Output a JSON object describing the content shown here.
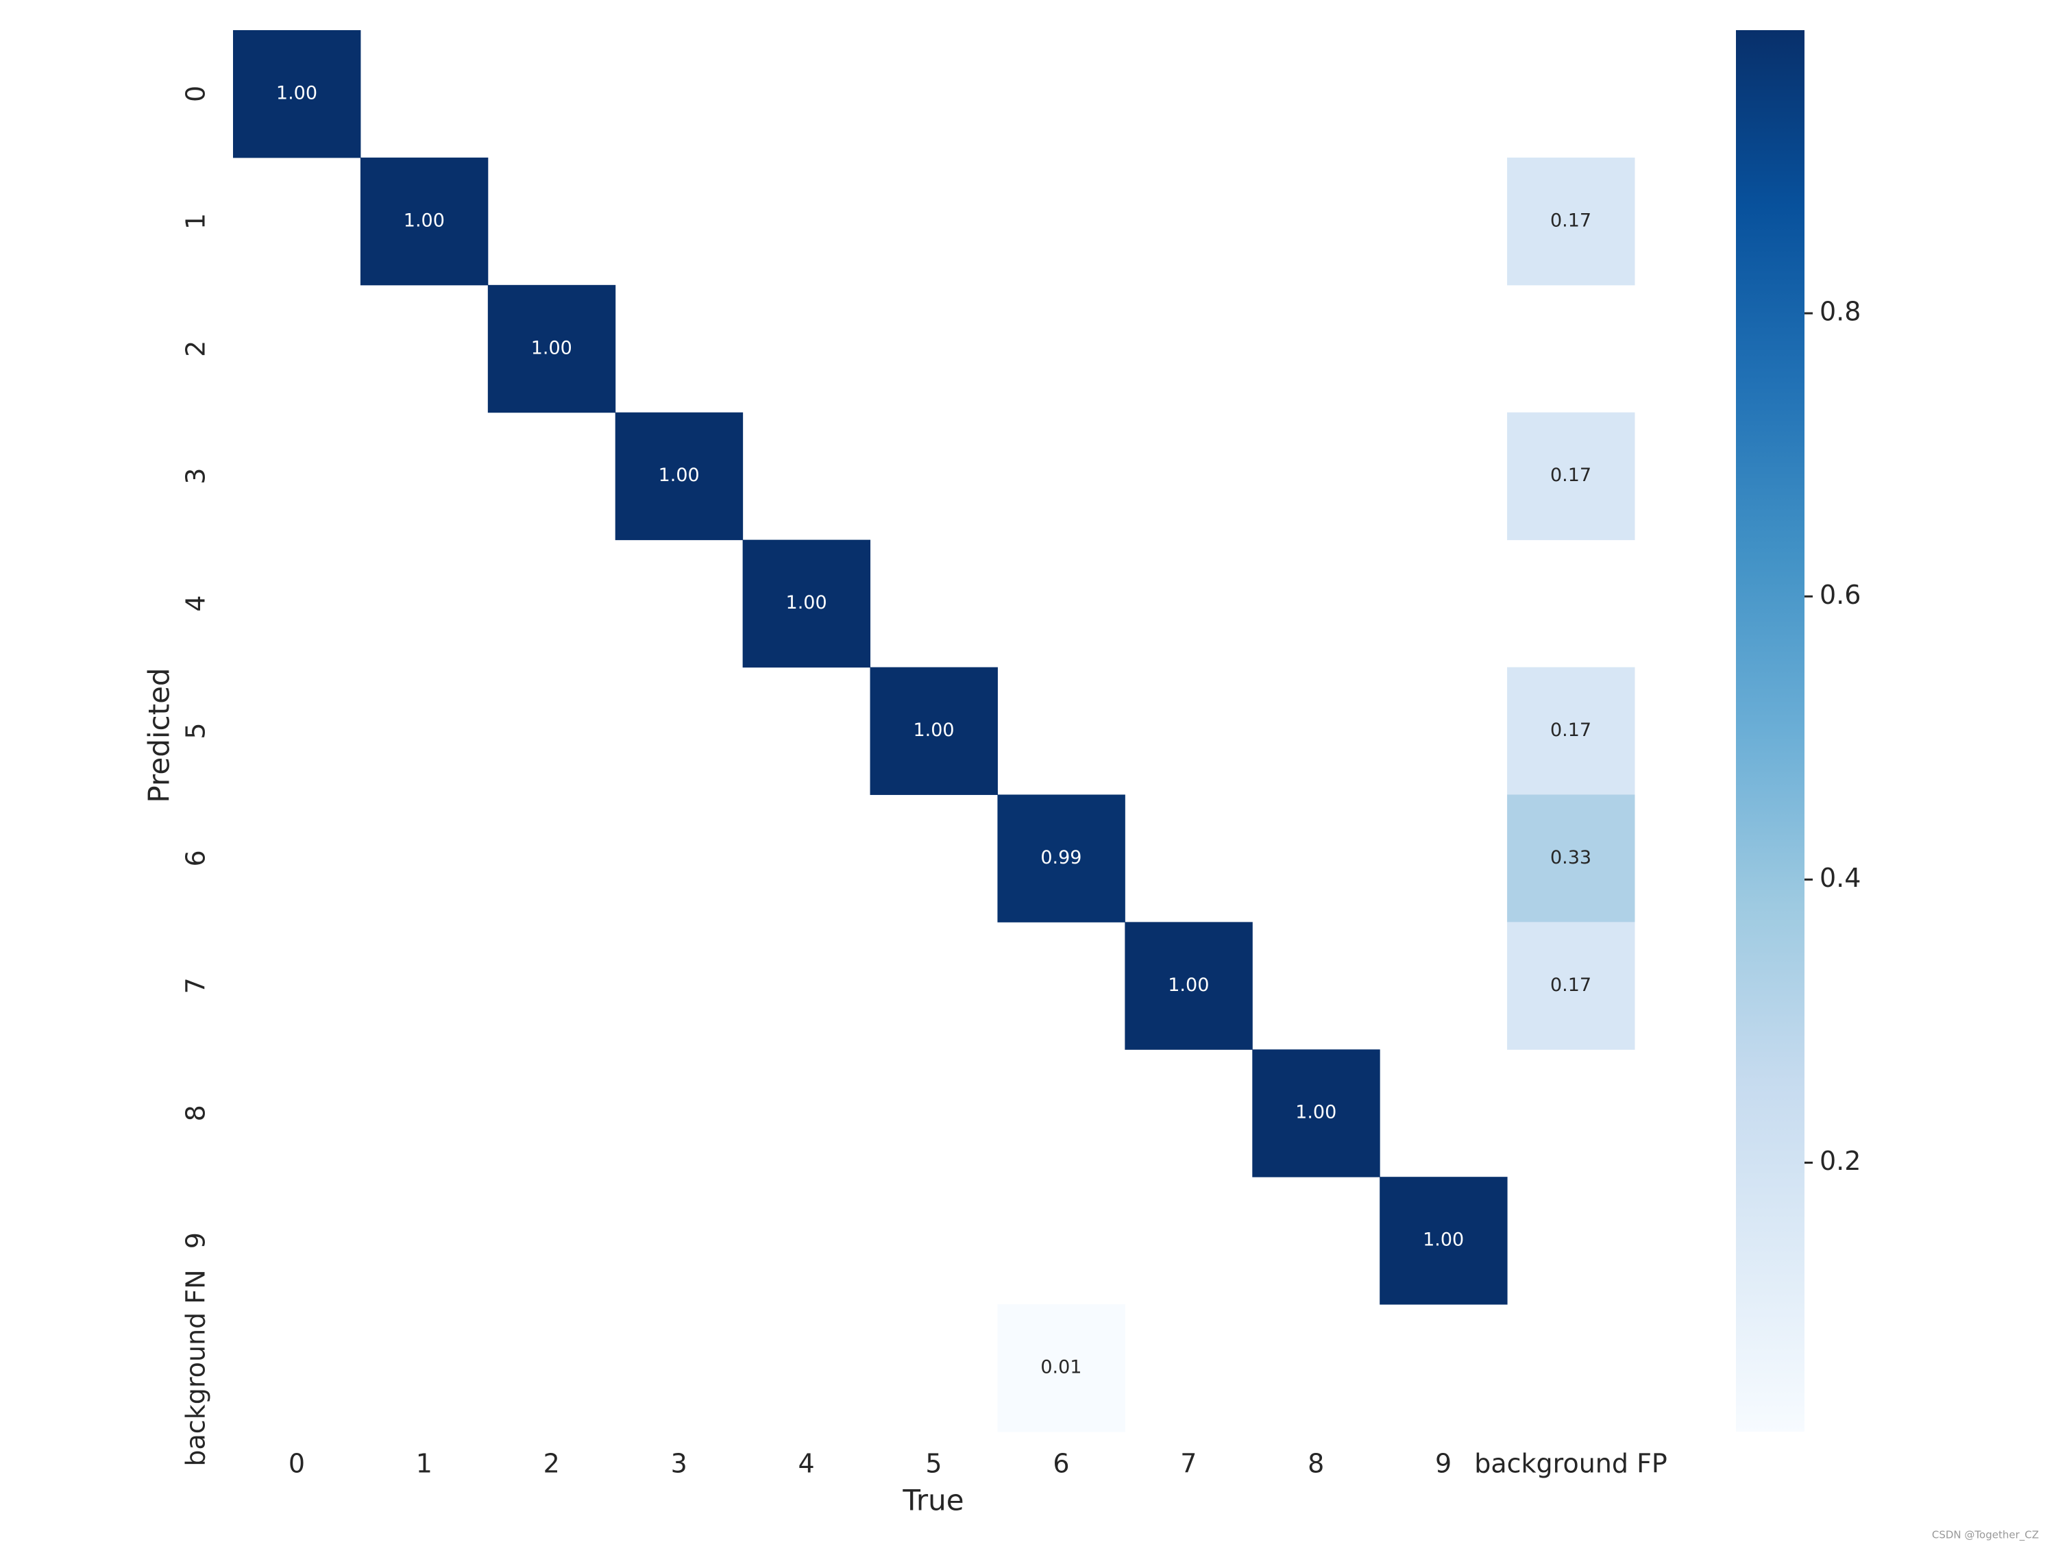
{
  "chart_data": {
    "type": "heatmap",
    "x_label": "True",
    "y_label": "Predicted",
    "x_categories": [
      "0",
      "1",
      "2",
      "3",
      "4",
      "5",
      "6",
      "7",
      "8",
      "9",
      "background FP"
    ],
    "y_categories": [
      "0",
      "1",
      "2",
      "3",
      "4",
      "5",
      "6",
      "7",
      "8",
      "9",
      "background FN"
    ],
    "values": [
      [
        1.0,
        null,
        null,
        null,
        null,
        null,
        null,
        null,
        null,
        null,
        null
      ],
      [
        null,
        1.0,
        null,
        null,
        null,
        null,
        null,
        null,
        null,
        null,
        0.17
      ],
      [
        null,
        null,
        1.0,
        null,
        null,
        null,
        null,
        null,
        null,
        null,
        null
      ],
      [
        null,
        null,
        null,
        1.0,
        null,
        null,
        null,
        null,
        null,
        null,
        0.17
      ],
      [
        null,
        null,
        null,
        null,
        1.0,
        null,
        null,
        null,
        null,
        null,
        null
      ],
      [
        null,
        null,
        null,
        null,
        null,
        1.0,
        null,
        null,
        null,
        null,
        0.17
      ],
      [
        null,
        null,
        null,
        null,
        null,
        null,
        0.99,
        null,
        null,
        null,
        0.33
      ],
      [
        null,
        null,
        null,
        null,
        null,
        null,
        null,
        1.0,
        null,
        null,
        0.17
      ],
      [
        null,
        null,
        null,
        null,
        null,
        null,
        null,
        null,
        1.0,
        null,
        null
      ],
      [
        null,
        null,
        null,
        null,
        null,
        null,
        null,
        null,
        null,
        1.0,
        null
      ],
      [
        null,
        null,
        null,
        null,
        null,
        null,
        0.01,
        null,
        null,
        null,
        null
      ]
    ],
    "value_labels": [
      [
        "1.00",
        null,
        null,
        null,
        null,
        null,
        null,
        null,
        null,
        null,
        null
      ],
      [
        null,
        "1.00",
        null,
        null,
        null,
        null,
        null,
        null,
        null,
        null,
        "0.17"
      ],
      [
        null,
        null,
        "1.00",
        null,
        null,
        null,
        null,
        null,
        null,
        null,
        null
      ],
      [
        null,
        null,
        null,
        "1.00",
        null,
        null,
        null,
        null,
        null,
        null,
        "0.17"
      ],
      [
        null,
        null,
        null,
        null,
        "1.00",
        null,
        null,
        null,
        null,
        null,
        null
      ],
      [
        null,
        null,
        null,
        null,
        null,
        "1.00",
        null,
        null,
        null,
        null,
        "0.17"
      ],
      [
        null,
        null,
        null,
        null,
        null,
        null,
        "0.99",
        null,
        null,
        null,
        "0.33"
      ],
      [
        null,
        null,
        null,
        null,
        null,
        null,
        null,
        "1.00",
        null,
        null,
        "0.17"
      ],
      [
        null,
        null,
        null,
        null,
        null,
        null,
        null,
        null,
        "1.00",
        null,
        null
      ],
      [
        null,
        null,
        null,
        null,
        null,
        null,
        null,
        null,
        null,
        "1.00",
        null
      ],
      [
        null,
        null,
        null,
        null,
        null,
        null,
        "0.01",
        null,
        null,
        null,
        null
      ]
    ],
    "colormap": "Blues",
    "clim": [
      0.01,
      1.0
    ],
    "cticks": [
      0.2,
      0.4,
      0.6,
      0.8
    ],
    "watermark": "CSDN @Together_CZ"
  }
}
